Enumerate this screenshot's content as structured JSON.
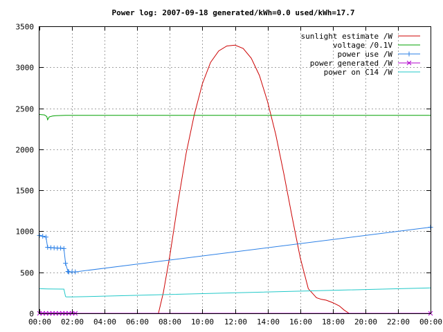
{
  "chart_data": {
    "type": "line",
    "title": "Power log: 2007-09-18 generated/kWh=0.0 used/kWh=17.7",
    "xlabel": "",
    "ylabel": "",
    "xlim": [
      0,
      24
    ],
    "ylim": [
      0,
      3500
    ],
    "x_ticks": [
      {
        "value": 0,
        "label": "00:00"
      },
      {
        "value": 2,
        "label": "02:00"
      },
      {
        "value": 4,
        "label": "04:00"
      },
      {
        "value": 6,
        "label": "06:00"
      },
      {
        "value": 8,
        "label": "08:00"
      },
      {
        "value": 10,
        "label": "10:00"
      },
      {
        "value": 12,
        "label": "12:00"
      },
      {
        "value": 14,
        "label": "14:00"
      },
      {
        "value": 16,
        "label": "16:00"
      },
      {
        "value": 18,
        "label": "18:00"
      },
      {
        "value": 20,
        "label": "20:00"
      },
      {
        "value": 22,
        "label": "22:00"
      },
      {
        "value": 24,
        "label": "00:00"
      }
    ],
    "y_ticks": [
      {
        "value": 0,
        "label": "0"
      },
      {
        "value": 500,
        "label": "500"
      },
      {
        "value": 1000,
        "label": "1000"
      },
      {
        "value": 1500,
        "label": "1500"
      },
      {
        "value": 2000,
        "label": "2000"
      },
      {
        "value": 2500,
        "label": "2500"
      },
      {
        "value": 3000,
        "label": "3000"
      },
      {
        "value": 3500,
        "label": "3500"
      }
    ],
    "grid": true,
    "legend_position": "top-right",
    "series": [
      {
        "name": "sunlight estimate /W",
        "color": "#cc0000",
        "marker": "none",
        "x": [
          7.3,
          7.6,
          8.0,
          8.5,
          9.0,
          9.5,
          10.0,
          10.5,
          11.0,
          11.5,
          12.0,
          12.5,
          13.0,
          13.5,
          14.0,
          14.5,
          15.0,
          15.5,
          16.0,
          16.5,
          17.0,
          17.3,
          17.6,
          18.0,
          18.4,
          18.7,
          19.0
        ],
        "y": [
          0,
          250,
          700,
          1350,
          1950,
          2420,
          2800,
          3060,
          3200,
          3260,
          3270,
          3230,
          3110,
          2900,
          2580,
          2180,
          1700,
          1180,
          680,
          300,
          190,
          170,
          160,
          130,
          90,
          40,
          0
        ]
      },
      {
        "name": "voltage /0.1V",
        "color": "#00a000",
        "marker": "none",
        "x": [
          0,
          0.3,
          0.45,
          0.5,
          0.6,
          0.8,
          1.0,
          1.3,
          1.6,
          2.0,
          2.2,
          24
        ],
        "y": [
          2425,
          2420,
          2400,
          2360,
          2395,
          2405,
          2410,
          2412,
          2414,
          2415,
          2415,
          2415
        ]
      },
      {
        "name": "power use /W",
        "color": "#2a7fe6",
        "marker": "plus",
        "x": [
          0,
          0.2,
          0.4,
          0.5,
          0.7,
          0.9,
          1.1,
          1.3,
          1.5,
          1.6,
          1.75,
          1.8,
          2.0,
          2.2,
          24
        ],
        "y": [
          950,
          940,
          930,
          805,
          800,
          798,
          795,
          795,
          790,
          610,
          510,
          505,
          505,
          505,
          1050
        ]
      },
      {
        "name": "power generated /W",
        "color": "#b000cc",
        "marker": "cross",
        "x": [
          0,
          0.2,
          0.4,
          0.6,
          0.8,
          1.0,
          1.2,
          1.4,
          1.6,
          1.8,
          2.0,
          2.2,
          24
        ],
        "y": [
          0,
          0,
          0,
          0,
          0,
          0,
          0,
          0,
          0,
          0,
          0,
          0,
          0
        ]
      },
      {
        "name": "power on C14 /W",
        "color": "#20c8c8",
        "marker": "none",
        "x": [
          0,
          0.5,
          1.0,
          1.5,
          1.6,
          1.65,
          2.0,
          24
        ],
        "y": [
          300,
          298,
          296,
          295,
          205,
          200,
          200,
          310
        ]
      }
    ]
  }
}
